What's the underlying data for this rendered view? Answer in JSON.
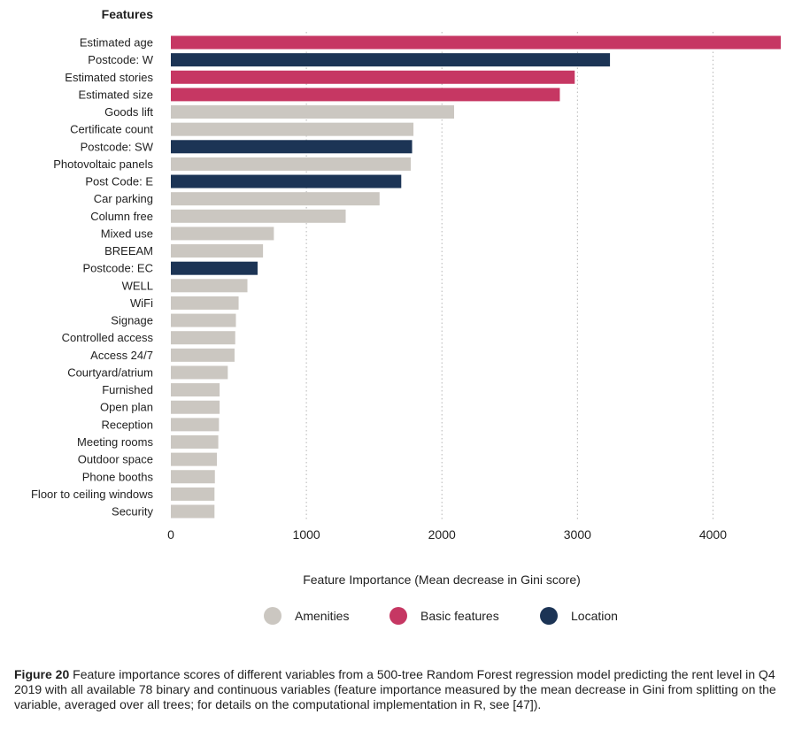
{
  "chart_data": {
    "type": "bar",
    "orientation": "horizontal",
    "ylabel": "Features",
    "xlabel": "Feature Importance (Mean decrease in Gini score)",
    "xlim": [
      0,
      4500
    ],
    "xticks": [
      0,
      1000,
      2000,
      3000,
      4000
    ],
    "grid": "vertical dotted",
    "legend_position": "bottom",
    "colors": {
      "Amenities": "#cbc7c1",
      "Basic features": "#c63763",
      "Location": "#1c3455"
    },
    "legend": [
      {
        "name": "Amenities",
        "color": "#cbc7c1"
      },
      {
        "name": "Basic features",
        "color": "#c63763"
      },
      {
        "name": "Location",
        "color": "#1c3455"
      }
    ],
    "bars": [
      {
        "label": "Estimated age",
        "value": 4500,
        "group": "Basic features"
      },
      {
        "label": "Postcode: W",
        "value": 3240,
        "group": "Location"
      },
      {
        "label": "Estimated stories",
        "value": 2980,
        "group": "Basic features"
      },
      {
        "label": "Estimated size",
        "value": 2870,
        "group": "Basic features"
      },
      {
        "label": "Goods lift",
        "value": 2090,
        "group": "Amenities"
      },
      {
        "label": "Certificate count",
        "value": 1790,
        "group": "Amenities"
      },
      {
        "label": "Postcode: SW",
        "value": 1780,
        "group": "Location"
      },
      {
        "label": "Photovoltaic panels",
        "value": 1770,
        "group": "Amenities"
      },
      {
        "label": "Post Code: E",
        "value": 1700,
        "group": "Location"
      },
      {
        "label": "Car parking",
        "value": 1540,
        "group": "Amenities"
      },
      {
        "label": "Column free",
        "value": 1290,
        "group": "Amenities"
      },
      {
        "label": "Mixed use",
        "value": 760,
        "group": "Amenities"
      },
      {
        "label": "BREEAM",
        "value": 680,
        "group": "Amenities"
      },
      {
        "label": "Postcode: EC",
        "value": 640,
        "group": "Location"
      },
      {
        "label": "WELL",
        "value": 565,
        "group": "Amenities"
      },
      {
        "label": "WiFi",
        "value": 500,
        "group": "Amenities"
      },
      {
        "label": "Signage",
        "value": 480,
        "group": "Amenities"
      },
      {
        "label": "Controlled access",
        "value": 475,
        "group": "Amenities"
      },
      {
        "label": "Access 24/7",
        "value": 470,
        "group": "Amenities"
      },
      {
        "label": "Courtyard/atrium",
        "value": 420,
        "group": "Amenities"
      },
      {
        "label": "Furnished",
        "value": 360,
        "group": "Amenities"
      },
      {
        "label": "Open plan",
        "value": 360,
        "group": "Amenities"
      },
      {
        "label": "Reception",
        "value": 355,
        "group": "Amenities"
      },
      {
        "label": "Meeting rooms",
        "value": 350,
        "group": "Amenities"
      },
      {
        "label": "Outdoor space",
        "value": 340,
        "group": "Amenities"
      },
      {
        "label": "Phone booths",
        "value": 325,
        "group": "Amenities"
      },
      {
        "label": "Floor to ceiling windows",
        "value": 322,
        "group": "Amenities"
      },
      {
        "label": "Security",
        "value": 322,
        "group": "Amenities"
      }
    ]
  },
  "caption": {
    "figure_label": "Figure 20",
    "text": " Feature importance scores of different variables from a 500-tree Random Forest regression model predicting the rent level in Q4 2019 with all available 78 binary and continuous variables (feature importance measured by the mean decrease in Gini from splitting on the variable, averaged over all trees; for details on the computational implementation in R, see [47])."
  }
}
